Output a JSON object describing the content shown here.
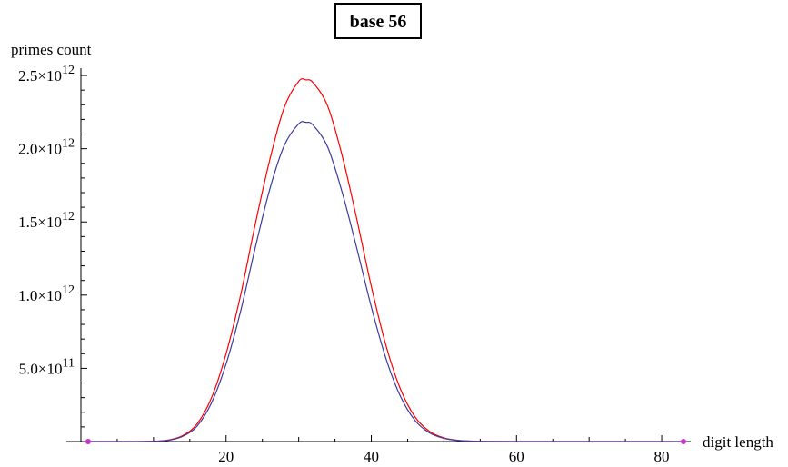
{
  "chart_data": {
    "type": "line",
    "title": "base 56",
    "xlabel": "digit length",
    "ylabel": "primes count",
    "xlim": [
      0,
      84
    ],
    "ylim": [
      0,
      2550000000000.0
    ],
    "x_ticks": [
      {
        "value": 20,
        "label": "20"
      },
      {
        "value": 40,
        "label": "40"
      },
      {
        "value": 60,
        "label": "60"
      },
      {
        "value": 80,
        "label": "80"
      }
    ],
    "y_ticks": [
      {
        "value": 500000000000.0,
        "mantissa": "5.0",
        "times": "×10",
        "exponent": "11"
      },
      {
        "value": 1000000000000.0,
        "mantissa": "1.0",
        "times": "×10",
        "exponent": "12"
      },
      {
        "value": 1500000000000.0,
        "mantissa": "1.5",
        "times": "×10",
        "exponent": "12"
      },
      {
        "value": 2000000000000.0,
        "mantissa": "2.0",
        "times": "×10",
        "exponent": "12"
      },
      {
        "value": 2500000000000.0,
        "mantissa": "2.5",
        "times": "×10",
        "exponent": "12"
      }
    ],
    "grid": false,
    "legend": "none",
    "series": [
      {
        "color": "#ff0000",
        "x": [
          1,
          5,
          10,
          12,
          14,
          16,
          18,
          20,
          22,
          24,
          26,
          28,
          30,
          31,
          32,
          34,
          36,
          38,
          40,
          42,
          44,
          46,
          48,
          50,
          52,
          55,
          60,
          70,
          83
        ],
        "y": [
          0,
          0,
          2000000000.0,
          10000000000.0,
          40000000000.0,
          120000000000.0,
          300000000000.0,
          600000000000.0,
          1000000000000.0,
          1480000000000.0,
          1920000000000.0,
          2280000000000.0,
          2460000000000.0,
          2470000000000.0,
          2450000000000.0,
          2290000000000.0,
          1950000000000.0,
          1520000000000.0,
          1060000000000.0,
          660000000000.0,
          360000000000.0,
          170000000000.0,
          70000000000.0,
          25000000000.0,
          8000000000.0,
          1000000000.0,
          0,
          0,
          0
        ]
      },
      {
        "color": "#3b3b9f",
        "x": [
          1,
          5,
          10,
          12,
          14,
          16,
          18,
          20,
          22,
          24,
          26,
          28,
          30,
          31,
          32,
          34,
          36,
          38,
          40,
          42,
          44,
          46,
          48,
          50,
          52,
          55,
          60,
          70,
          83
        ],
        "y": [
          0,
          0,
          2000000000.0,
          8000000000.0,
          35000000000.0,
          105000000000.0,
          265000000000.0,
          530000000000.0,
          890000000000.0,
          1320000000000.0,
          1720000000000.0,
          2020000000000.0,
          2170000000000.0,
          2180000000000.0,
          2160000000000.0,
          2010000000000.0,
          1700000000000.0,
          1320000000000.0,
          920000000000.0,
          570000000000.0,
          310000000000.0,
          145000000000.0,
          60000000000.0,
          22000000000.0,
          7000000000.0,
          1000000000.0,
          0,
          0,
          0
        ]
      }
    ],
    "markers": [
      {
        "x": 1,
        "y": 0,
        "color": "#cc33cc"
      },
      {
        "x": 83,
        "y": 0,
        "color": "#cc33cc"
      }
    ]
  }
}
